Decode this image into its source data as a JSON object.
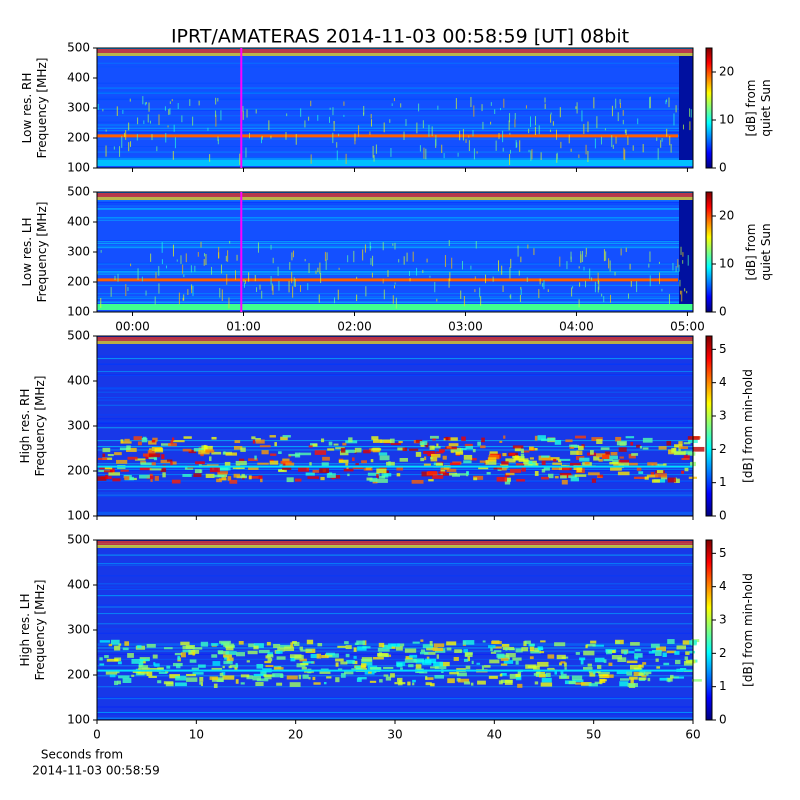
{
  "figure": {
    "title": "IPRT/AMATERAS 2014-11-03 00:58:59 [UT]   08bit",
    "time_axis": {
      "xlim": [
        -0.32,
        5.05
      ],
      "xticks": [
        {
          "value": 0,
          "label": "00:00"
        },
        {
          "value": 1,
          "label": "01:00"
        },
        {
          "value": 2,
          "label": "02:00"
        },
        {
          "value": 3,
          "label": "03:00"
        },
        {
          "value": 4,
          "label": "04:00"
        },
        {
          "value": 5,
          "label": "05:00"
        }
      ]
    },
    "marker": {
      "x": 0.98,
      "color": "#ff00ff"
    },
    "seconds_axis": {
      "xlim": [
        0,
        60
      ],
      "xticks": [
        0,
        10,
        20,
        30,
        40,
        50,
        60
      ],
      "xlabel": [
        "Seconds from",
        "2014-11-03 00:58:59"
      ]
    }
  },
  "chart_data": [
    {
      "type": "heatmap",
      "ylabel": [
        "Low res. RH",
        "Frequency [MHz]"
      ],
      "ylim": [
        100,
        500
      ],
      "yticks": [
        100,
        200,
        300,
        400,
        500
      ],
      "colorbar_label": [
        "[dB] from",
        "quiet Sun"
      ],
      "clim": [
        0,
        25
      ],
      "cticks": [
        0,
        10,
        20
      ]
    },
    {
      "type": "heatmap",
      "ylabel": [
        "Low res. LH",
        "Frequency [MHz]"
      ],
      "ylim": [
        100,
        500
      ],
      "yticks": [
        100,
        200,
        300,
        400,
        500
      ],
      "colorbar_label": [
        "[dB] from",
        "quiet Sun"
      ],
      "clim": [
        0,
        25
      ],
      "cticks": [
        0,
        10,
        20
      ]
    },
    {
      "type": "heatmap",
      "ylabel": [
        "High res. RH",
        "Frequency [MHz]"
      ],
      "ylim": [
        100,
        500
      ],
      "yticks": [
        100,
        200,
        300,
        400,
        500
      ],
      "colorbar_label": [
        "[dB] from min-hold"
      ],
      "clim": [
        0,
        5.4
      ],
      "cticks": [
        0,
        1,
        2,
        3,
        4,
        5
      ]
    },
    {
      "type": "heatmap",
      "ylabel": [
        "High res. LH",
        "Frequency [MHz]"
      ],
      "ylim": [
        100,
        500
      ],
      "yticks": [
        100,
        200,
        300,
        400,
        500
      ],
      "colorbar_label": [
        "[dB] from min-hold"
      ],
      "clim": [
        0,
        5.4
      ],
      "cticks": [
        0,
        1,
        2,
        3,
        4,
        5
      ]
    }
  ]
}
